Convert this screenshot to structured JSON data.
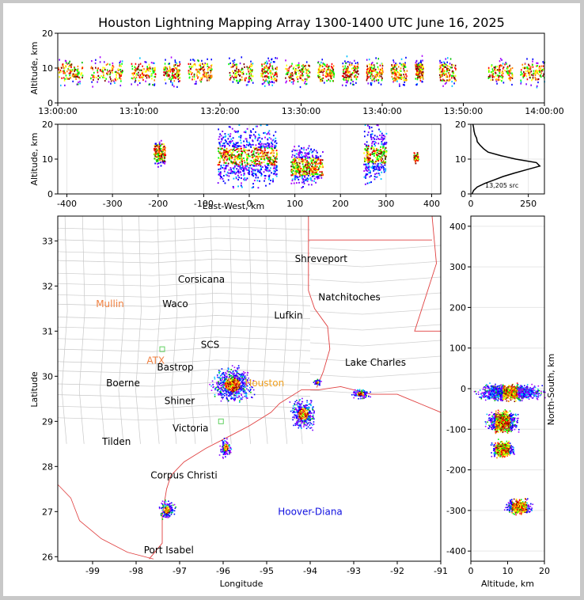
{
  "title": "Houston Lightning Mapping Array 1300-1400 UTC June 16, 2025",
  "chart_data": [
    {
      "id": "time-height",
      "type": "scatter",
      "ylabel": "Altitude, km",
      "xlim": [
        "13:00:00",
        "14:00:00"
      ],
      "ylim": [
        0,
        20
      ],
      "x_ticks": [
        "13:00:00",
        "13:10:00",
        "13:20:00",
        "13:30:00",
        "13:40:00",
        "13:50:00",
        "14:00:00"
      ],
      "y_ticks": [
        "0",
        "10",
        "20"
      ],
      "source_clusters_minutes": [
        [
          0,
          3
        ],
        [
          4,
          8
        ],
        [
          9,
          12
        ],
        [
          13,
          15
        ],
        [
          16,
          19
        ],
        [
          21,
          24
        ],
        [
          25,
          27
        ],
        [
          28,
          31
        ],
        [
          32,
          34
        ],
        [
          35,
          37
        ],
        [
          38,
          40
        ],
        [
          41,
          43
        ],
        [
          44,
          45
        ],
        [
          47,
          49
        ],
        [
          53,
          56
        ],
        [
          57,
          60
        ]
      ],
      "typical_altitude_km": [
        6,
        13
      ]
    },
    {
      "id": "east-west-altitude",
      "type": "scatter",
      "xlabel": "East-West, km",
      "ylabel": "Altitude, km",
      "xlim": [
        -420,
        420
      ],
      "ylim": [
        0,
        20
      ],
      "x_ticks": [
        "-400",
        "-300",
        "-200",
        "-100",
        "0",
        "100",
        "200",
        "300",
        "400"
      ],
      "y_ticks": [
        "0",
        "10",
        "20"
      ],
      "clusters": [
        {
          "x": [
            -210,
            -185
          ],
          "alt": [
            8,
            16
          ]
        },
        {
          "x": [
            -70,
            60
          ],
          "alt": [
            2,
            20
          ]
        },
        {
          "x": [
            90,
            160
          ],
          "alt": [
            2,
            14
          ]
        },
        {
          "x": [
            250,
            300
          ],
          "alt": [
            3,
            20
          ]
        },
        {
          "x": [
            360,
            370
          ],
          "alt": [
            9,
            12
          ]
        }
      ]
    },
    {
      "id": "altitude-histogram",
      "type": "line",
      "annotation": "13,205 src",
      "xlim": [
        0,
        320
      ],
      "ylim": [
        0,
        20
      ],
      "x_ticks": [
        "0",
        "250"
      ],
      "y_ticks": [
        "0",
        "10",
        "20"
      ],
      "altitude_km": [
        0,
        1,
        2,
        3,
        4,
        5,
        6,
        7,
        8,
        9,
        10,
        11,
        12,
        13,
        14,
        15,
        16,
        17,
        18,
        19,
        20
      ],
      "count": [
        5,
        12,
        28,
        60,
        100,
        140,
        190,
        245,
        300,
        285,
        195,
        130,
        75,
        55,
        40,
        28,
        25,
        18,
        14,
        12,
        9
      ]
    },
    {
      "id": "plan-view",
      "type": "scatter",
      "xlabel": "Longitude",
      "ylabel": "Latitude",
      "xlim": [
        -99.8,
        -91.0
      ],
      "ylim": [
        25.9,
        33.55
      ],
      "x_ticks": [
        "-99",
        "-98",
        "-97",
        "-96",
        "-95",
        "-94",
        "-93",
        "-92",
        "-91"
      ],
      "y_ticks": [
        "26",
        "27",
        "28",
        "29",
        "30",
        "31",
        "32",
        "33"
      ],
      "cities": [
        {
          "name": "Shreveport",
          "lon": -93.75,
          "lat": 32.6,
          "color": "#000000"
        },
        {
          "name": "Corsicana",
          "lon": -96.5,
          "lat": 32.15,
          "color": "#000000"
        },
        {
          "name": "Natchitoches",
          "lon": -93.1,
          "lat": 31.75,
          "color": "#000000"
        },
        {
          "name": "Mullin",
          "lon": -98.6,
          "lat": 31.6,
          "color": "#f08040"
        },
        {
          "name": "Waco",
          "lon": -97.1,
          "lat": 31.6,
          "color": "#000000"
        },
        {
          "name": "Lufkin",
          "lon": -94.5,
          "lat": 31.35,
          "color": "#000000"
        },
        {
          "name": "SCS",
          "lon": -96.3,
          "lat": 30.7,
          "color": "#000000"
        },
        {
          "name": "ATX",
          "lon": -97.55,
          "lat": 30.35,
          "color": "#f08040"
        },
        {
          "name": "Bastrop",
          "lon": -97.1,
          "lat": 30.2,
          "color": "#000000"
        },
        {
          "name": "Lake Charles",
          "lon": -92.5,
          "lat": 30.3,
          "color": "#000000"
        },
        {
          "name": "Boerne",
          "lon": -98.3,
          "lat": 29.85,
          "color": "#000000"
        },
        {
          "name": "Houston",
          "lon": -95.05,
          "lat": 29.85,
          "color": "#f0a020"
        },
        {
          "name": "Shiner",
          "lon": -97.0,
          "lat": 29.45,
          "color": "#000000"
        },
        {
          "name": "Victoria",
          "lon": -96.75,
          "lat": 28.85,
          "color": "#000000"
        },
        {
          "name": "Tilden",
          "lon": -98.45,
          "lat": 28.55,
          "color": "#000000"
        },
        {
          "name": "Corpus Christi",
          "lon": -96.9,
          "lat": 27.8,
          "color": "#000000"
        },
        {
          "name": "Hoover-Diana",
          "lon": -94.0,
          "lat": 27.0,
          "color": "#1010e0"
        },
        {
          "name": "Port Isabel",
          "lon": -97.25,
          "lat": 26.15,
          "color": "#000000"
        }
      ],
      "sensor_markers": [
        [
          -97.4,
          30.6
        ],
        [
          -96.05,
          29.0
        ]
      ],
      "clusters": [
        {
          "lon": [
            -96.3,
            -95.3
          ],
          "lat": [
            29.4,
            30.25
          ]
        },
        {
          "lon": [
            -94.5,
            -93.85
          ],
          "lat": [
            28.8,
            29.55
          ]
        },
        {
          "lon": [
            -93.1,
            -92.6
          ],
          "lat": [
            29.5,
            29.75
          ]
        },
        {
          "lon": [
            -96.1,
            -95.8
          ],
          "lat": [
            28.2,
            28.65
          ]
        },
        {
          "lon": [
            -97.5,
            -97.1
          ],
          "lat": [
            26.8,
            27.3
          ]
        },
        {
          "lon": [
            -93.95,
            -93.75
          ],
          "lat": [
            29.8,
            29.95
          ]
        }
      ]
    },
    {
      "id": "north-south-altitude",
      "type": "scatter",
      "xlabel": "Altitude, km",
      "ylabel": "North-South, km",
      "xlim": [
        0,
        20
      ],
      "ylim": [
        -425,
        425
      ],
      "x_ticks": [
        "0",
        "10",
        "20"
      ],
      "y_ticks": [
        "-400",
        "-300",
        "-200",
        "-100",
        "0",
        "100",
        "200",
        "300",
        "400"
      ],
      "clusters": [
        {
          "alt": [
            1,
            20
          ],
          "ns": [
            -30,
            15
          ]
        },
        {
          "alt": [
            4,
            13
          ],
          "ns": [
            -110,
            -50
          ]
        },
        {
          "alt": [
            5,
            12
          ],
          "ns": [
            -170,
            -125
          ]
        },
        {
          "alt": [
            9,
            17
          ],
          "ns": [
            -310,
            -270
          ]
        }
      ]
    }
  ]
}
